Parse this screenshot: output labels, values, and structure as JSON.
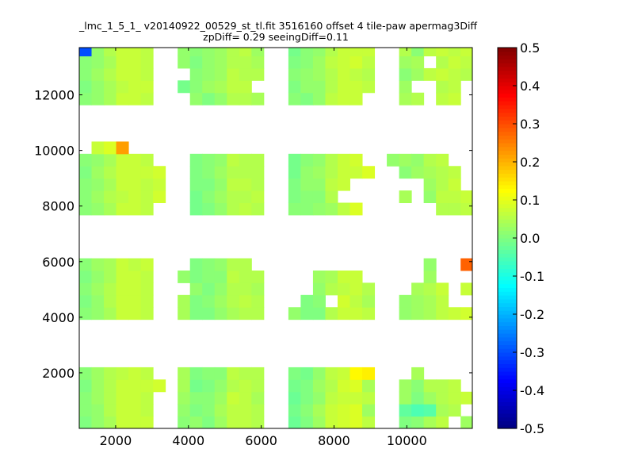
{
  "chart_data": {
    "type": "heatmap",
    "title_line1": "_lmc_1_5_1_ v20140922_00529_st_tl.fit 3516160 offset 4 tile-paw apermag3Diff",
    "title_line2": "zpDiff= 0.29 seeingDiff=0.11",
    "xlabel": "",
    "ylabel": "",
    "xlim": [
      1000,
      11800
    ],
    "ylim": [
      0,
      13700
    ],
    "x_ticks": [
      2000,
      4000,
      6000,
      8000,
      10000
    ],
    "y_ticks": [
      2000,
      4000,
      6000,
      8000,
      10000,
      12000
    ],
    "colorbar": {
      "colormap": "jet",
      "range": [
        -0.5,
        0.5
      ],
      "ticks": [
        "-0.5",
        "-0.4",
        "-0.3",
        "-0.2",
        "-0.1",
        "0.0",
        "0.1",
        "0.2",
        "0.3",
        "0.4",
        "0.5"
      ]
    },
    "cell_size": [
      338,
      440
    ],
    "grid_columns_x_start": [
      1000,
      1338,
      1676,
      2014,
      2352,
      2690,
      3028,
      3366,
      3704,
      4042,
      4380,
      4718,
      5056,
      5394,
      5732,
      6070,
      6408,
      6746,
      7084,
      7422,
      7760,
      8098,
      8436,
      8774,
      9112,
      9450,
      9788,
      10126,
      10464,
      10802,
      11140,
      11478
    ],
    "grid_rows_y_start": [
      0,
      440,
      880,
      1320,
      1760,
      3920,
      4360,
      4800,
      5240,
      5680,
      7680,
      8120,
      8560,
      9000,
      9440,
      9880,
      11640,
      12080,
      12520,
      12960,
      13400
    ],
    "rows": [
      [
        0.0,
        0.02,
        0.04,
        0.07,
        0.07,
        0.07,
        null,
        null,
        0.01,
        0.02,
        0.0,
        0.03,
        0.06,
        0.06,
        0.05,
        null,
        null,
        -0.02,
        0.0,
        0.03,
        0.07,
        0.08,
        0.09,
        0.06,
        null,
        null,
        0.0,
        0.01,
        0.04,
        0.06,
        null,
        0.03
      ],
      [
        0.01,
        0.02,
        0.05,
        0.07,
        0.07,
        0.06,
        null,
        null,
        0.02,
        0.0,
        0.01,
        0.04,
        0.06,
        0.06,
        0.05,
        null,
        null,
        -0.01,
        0.01,
        0.04,
        0.07,
        0.08,
        0.09,
        0.03,
        null,
        null,
        -0.03,
        -0.05,
        -0.04,
        0.04,
        0.05,
        null
      ],
      [
        0.01,
        0.03,
        0.05,
        0.07,
        0.07,
        0.06,
        null,
        null,
        0.03,
        0.01,
        0.01,
        0.03,
        0.07,
        0.06,
        0.04,
        null,
        null,
        -0.02,
        0.0,
        0.02,
        0.06,
        0.07,
        0.07,
        0.06,
        null,
        null,
        0.03,
        0.0,
        0.03,
        0.05,
        0.06,
        0.07
      ],
      [
        0.0,
        0.03,
        0.05,
        0.07,
        0.07,
        0.07,
        0.08,
        null,
        0.04,
        -0.01,
        0.0,
        0.02,
        0.05,
        0.06,
        0.05,
        null,
        null,
        -0.01,
        0.0,
        0.03,
        0.05,
        0.08,
        0.09,
        0.04,
        null,
        null,
        0.03,
        0.01,
        0.05,
        0.05,
        0.06,
        null
      ],
      [
        0.01,
        0.03,
        0.05,
        0.06,
        0.07,
        0.06,
        null,
        null,
        0.04,
        0.0,
        0.01,
        0.01,
        0.06,
        0.05,
        0.05,
        null,
        null,
        0.0,
        -0.01,
        0.02,
        0.06,
        0.07,
        0.13,
        0.14,
        null,
        null,
        null,
        0.04,
        null,
        null,
        null,
        null
      ],
      [
        0.01,
        0.02,
        0.04,
        0.07,
        0.07,
        0.06,
        null,
        null,
        0.04,
        0.0,
        0.0,
        0.02,
        0.04,
        0.05,
        0.05,
        null,
        null,
        0.02,
        0.0,
        0.0,
        0.05,
        0.07,
        0.07,
        0.06,
        null,
        null,
        0.02,
        0.03,
        0.04,
        0.06,
        0.07,
        0.08
      ],
      [
        0.0,
        0.02,
        0.05,
        0.07,
        0.07,
        0.06,
        null,
        null,
        0.04,
        0.0,
        0.01,
        0.03,
        0.05,
        0.06,
        0.05,
        null,
        null,
        null,
        0.0,
        0.01,
        null,
        0.08,
        0.06,
        0.04,
        null,
        null,
        0.02,
        0.03,
        0.04,
        0.06,
        null,
        null
      ],
      [
        0.01,
        0.03,
        0.05,
        0.07,
        0.07,
        0.06,
        null,
        null,
        null,
        0.02,
        0.0,
        0.02,
        0.05,
        0.05,
        0.04,
        null,
        null,
        null,
        null,
        0.02,
        0.05,
        0.06,
        0.07,
        0.05,
        null,
        null,
        null,
        0.04,
        0.05,
        0.07,
        null,
        0.07
      ],
      [
        0.0,
        0.02,
        0.04,
        0.07,
        0.07,
        0.06,
        null,
        null,
        0.02,
        0.0,
        0.01,
        0.01,
        0.06,
        0.05,
        0.05,
        null,
        null,
        null,
        null,
        0.03,
        0.04,
        0.07,
        0.07,
        null,
        null,
        null,
        null,
        null,
        0.03,
        null,
        null,
        null
      ],
      [
        0.01,
        0.03,
        0.04,
        0.07,
        0.06,
        0.07,
        null,
        null,
        null,
        0.0,
        0.01,
        0.02,
        0.05,
        0.05,
        null,
        null,
        null,
        null,
        null,
        null,
        null,
        null,
        null,
        null,
        null,
        null,
        null,
        null,
        0.02,
        null,
        null,
        0.28
      ],
      [
        0.01,
        0.02,
        0.04,
        0.07,
        0.07,
        0.06,
        null,
        null,
        null,
        -0.01,
        0.0,
        0.02,
        0.05,
        0.06,
        0.05,
        null,
        null,
        0.01,
        0.01,
        0.02,
        0.03,
        0.06,
        0.09,
        null,
        null,
        null,
        null,
        null,
        null,
        0.05,
        0.05,
        0.06
      ],
      [
        0.01,
        0.03,
        0.05,
        0.06,
        0.07,
        0.06,
        0.08,
        null,
        null,
        -0.01,
        0.01,
        0.03,
        0.05,
        0.05,
        0.06,
        null,
        null,
        0.0,
        0.01,
        0.01,
        0.05,
        null,
        null,
        null,
        null,
        null,
        0.04,
        null,
        0.02,
        0.06,
        0.06,
        0.07
      ],
      [
        0.01,
        0.02,
        0.04,
        0.07,
        0.07,
        0.06,
        0.07,
        null,
        null,
        0.0,
        0.0,
        0.02,
        0.06,
        0.06,
        0.05,
        null,
        null,
        0.0,
        0.02,
        0.02,
        0.06,
        0.07,
        null,
        null,
        null,
        null,
        null,
        null,
        0.03,
        0.05,
        0.07,
        null
      ],
      [
        0.0,
        0.03,
        0.05,
        0.07,
        0.07,
        0.07,
        0.08,
        null,
        null,
        0.0,
        0.01,
        0.03,
        0.05,
        0.05,
        0.05,
        null,
        null,
        -0.01,
        0.02,
        0.03,
        0.05,
        0.07,
        0.07,
        0.09,
        null,
        null,
        0.01,
        0.03,
        0.04,
        0.05,
        0.06,
        null
      ],
      [
        0.01,
        0.02,
        0.04,
        0.07,
        0.07,
        0.06,
        null,
        null,
        null,
        0.0,
        0.01,
        0.02,
        0.06,
        0.05,
        0.05,
        null,
        null,
        -0.01,
        0.01,
        0.02,
        0.05,
        0.07,
        0.08,
        null,
        null,
        0.02,
        0.03,
        0.02,
        0.05,
        0.06,
        null,
        null
      ],
      [
        null,
        0.07,
        0.09,
        0.22,
        null,
        null,
        null,
        null,
        null,
        null,
        null,
        null,
        null,
        null,
        null,
        null,
        null,
        null,
        null,
        null,
        null,
        null,
        null,
        null,
        null,
        null,
        null,
        null,
        null,
        null,
        null,
        null
      ],
      [
        0.01,
        0.02,
        0.04,
        0.07,
        0.07,
        0.06,
        null,
        null,
        null,
        0.02,
        0.0,
        0.02,
        0.05,
        0.05,
        0.04,
        null,
        null,
        0.01,
        0.0,
        0.02,
        0.06,
        0.07,
        0.07,
        null,
        null,
        null,
        0.04,
        0.05,
        null,
        0.06,
        0.07,
        null
      ],
      [
        0.0,
        0.02,
        0.04,
        0.06,
        0.07,
        0.07,
        null,
        null,
        -0.01,
        0.01,
        0.03,
        0.04,
        0.06,
        0.06,
        null,
        null,
        null,
        0.0,
        0.02,
        0.02,
        0.05,
        0.07,
        0.07,
        0.06,
        null,
        null,
        0.03,
        null,
        null,
        0.05,
        0.06,
        null
      ],
      [
        0.01,
        0.03,
        0.05,
        0.07,
        0.07,
        0.06,
        null,
        null,
        null,
        0.01,
        0.02,
        0.03,
        0.06,
        0.05,
        0.05,
        null,
        null,
        0.01,
        0.02,
        0.03,
        0.05,
        0.07,
        0.06,
        0.05,
        null,
        null,
        0.01,
        0.03,
        0.06,
        0.07,
        0.06,
        0.05
      ],
      [
        0.01,
        0.02,
        0.04,
        0.07,
        0.07,
        0.06,
        null,
        null,
        0.02,
        0.0,
        0.02,
        0.03,
        0.05,
        0.05,
        0.04,
        null,
        null,
        0.0,
        0.01,
        0.03,
        0.06,
        0.07,
        0.08,
        0.06,
        null,
        null,
        0.03,
        0.04,
        null,
        0.05,
        0.07,
        0.06
      ],
      [
        -0.3,
        0.02,
        0.05,
        0.07,
        0.07,
        0.06,
        null,
        null,
        0.02,
        0.01,
        0.02,
        0.03,
        0.05,
        0.06,
        0.03,
        null,
        null,
        -0.01,
        0.01,
        0.02,
        0.05,
        0.07,
        0.07,
        0.07,
        null,
        null,
        0.05,
        0.01,
        0.06,
        0.07,
        0.06,
        0.07
      ]
    ]
  }
}
